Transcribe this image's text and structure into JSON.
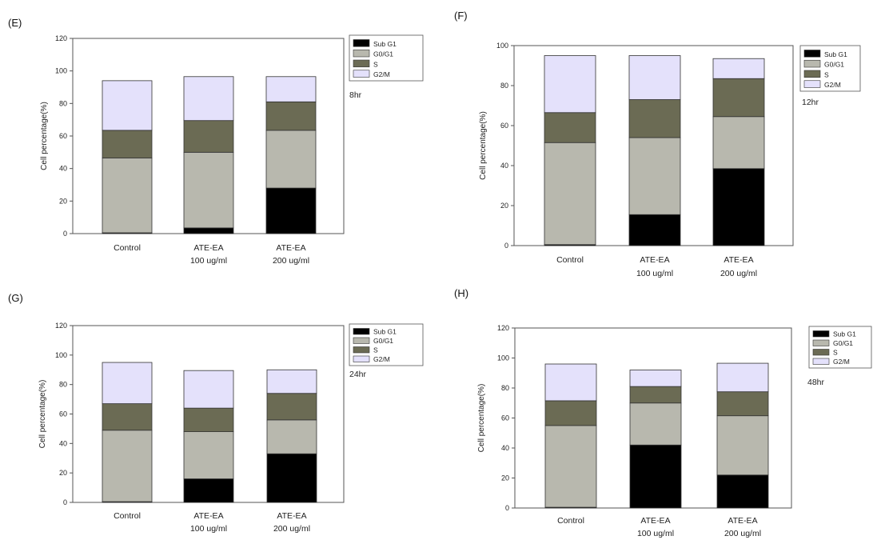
{
  "colors": {
    "sub_g1": "#000000",
    "g0_g1": "#b8b8ae",
    "s": "#6b6b54",
    "g2_m": "#e4e1fb",
    "axis": "#555555",
    "text": "#222222"
  },
  "chart_data": [
    {
      "panel": "(E)",
      "type": "bar",
      "stacked": true,
      "annotation": "8hr",
      "ylabel": "Cell percentage(%)",
      "ylim": [
        0,
        120
      ],
      "yticks": [
        0,
        20,
        40,
        60,
        80,
        100,
        120
      ],
      "categories": [
        {
          "line1": "Control",
          "line2": ""
        },
        {
          "line1": "ATE-EA",
          "line2": "100 ug/ml"
        },
        {
          "line1": "ATE-EA",
          "line2": "200 ug/ml"
        }
      ],
      "legend": [
        "Sub G1",
        "G0/G1",
        "S",
        "G2/M"
      ],
      "series": [
        {
          "name": "Sub G1",
          "values": [
            0.5,
            3.5,
            28
          ]
        },
        {
          "name": "G0/G1",
          "values": [
            46,
            46.5,
            35.5
          ]
        },
        {
          "name": "S",
          "values": [
            17,
            19.5,
            17.5
          ]
        },
        {
          "name": "G2/M",
          "values": [
            30.5,
            27,
            15.5
          ]
        }
      ]
    },
    {
      "panel": "(F)",
      "type": "bar",
      "stacked": true,
      "annotation": "12hr",
      "ylabel": "Cell percentage(%)",
      "ylim": [
        0,
        100
      ],
      "yticks": [
        0,
        20,
        40,
        60,
        80,
        100
      ],
      "categories": [
        {
          "line1": "Control",
          "line2": ""
        },
        {
          "line1": "ATE-EA",
          "line2": "100 ug/ml"
        },
        {
          "line1": "ATE-EA",
          "line2": "200 ug/ml"
        }
      ],
      "legend": [
        "Sub G1",
        "G0/G1",
        "S",
        "G2/M"
      ],
      "series": [
        {
          "name": "Sub G1",
          "values": [
            0.5,
            15.5,
            38.5
          ]
        },
        {
          "name": "G0/G1",
          "values": [
            51,
            38.5,
            26
          ]
        },
        {
          "name": "S",
          "values": [
            15,
            19,
            19
          ]
        },
        {
          "name": "G2/M",
          "values": [
            28.5,
            22,
            10
          ]
        }
      ]
    },
    {
      "panel": "(G)",
      "type": "bar",
      "stacked": true,
      "annotation": "24hr",
      "ylabel": "Cell percentage(%)",
      "ylim": [
        0,
        120
      ],
      "yticks": [
        0,
        20,
        40,
        60,
        80,
        100,
        120
      ],
      "categories": [
        {
          "line1": "Control",
          "line2": ""
        },
        {
          "line1": "ATE-EA",
          "line2": "100 ug/ml"
        },
        {
          "line1": "ATE-EA",
          "line2": "200 ug/ml"
        }
      ],
      "legend": [
        "Sub G1",
        "G0/G1",
        "S",
        "G2/M"
      ],
      "series": [
        {
          "name": "Sub G1",
          "values": [
            0.5,
            16,
            33
          ]
        },
        {
          "name": "G0/G1",
          "values": [
            48.5,
            32,
            23
          ]
        },
        {
          "name": "S",
          "values": [
            18,
            16,
            18
          ]
        },
        {
          "name": "G2/M",
          "values": [
            28,
            25.5,
            16
          ]
        }
      ]
    },
    {
      "panel": "(H)",
      "type": "bar",
      "stacked": true,
      "annotation": "48hr",
      "ylabel": "Cell percentage(%)",
      "ylim": [
        0,
        120
      ],
      "yticks": [
        0,
        20,
        40,
        60,
        80,
        100,
        120
      ],
      "categories": [
        {
          "line1": "Control",
          "line2": ""
        },
        {
          "line1": "ATE-EA",
          "line2": "100 ug/ml"
        },
        {
          "line1": "ATE-EA",
          "line2": "200 ug/ml"
        }
      ],
      "legend": [
        "Sub G1",
        "G0/G1",
        "S",
        "G2/M"
      ],
      "series": [
        {
          "name": "Sub G1",
          "values": [
            0.5,
            42,
            22
          ]
        },
        {
          "name": "G0/G1",
          "values": [
            54.5,
            28,
            39.5
          ]
        },
        {
          "name": "S",
          "values": [
            16.5,
            11,
            16
          ]
        },
        {
          "name": "G2/M",
          "values": [
            24.5,
            11,
            19
          ]
        }
      ]
    }
  ]
}
